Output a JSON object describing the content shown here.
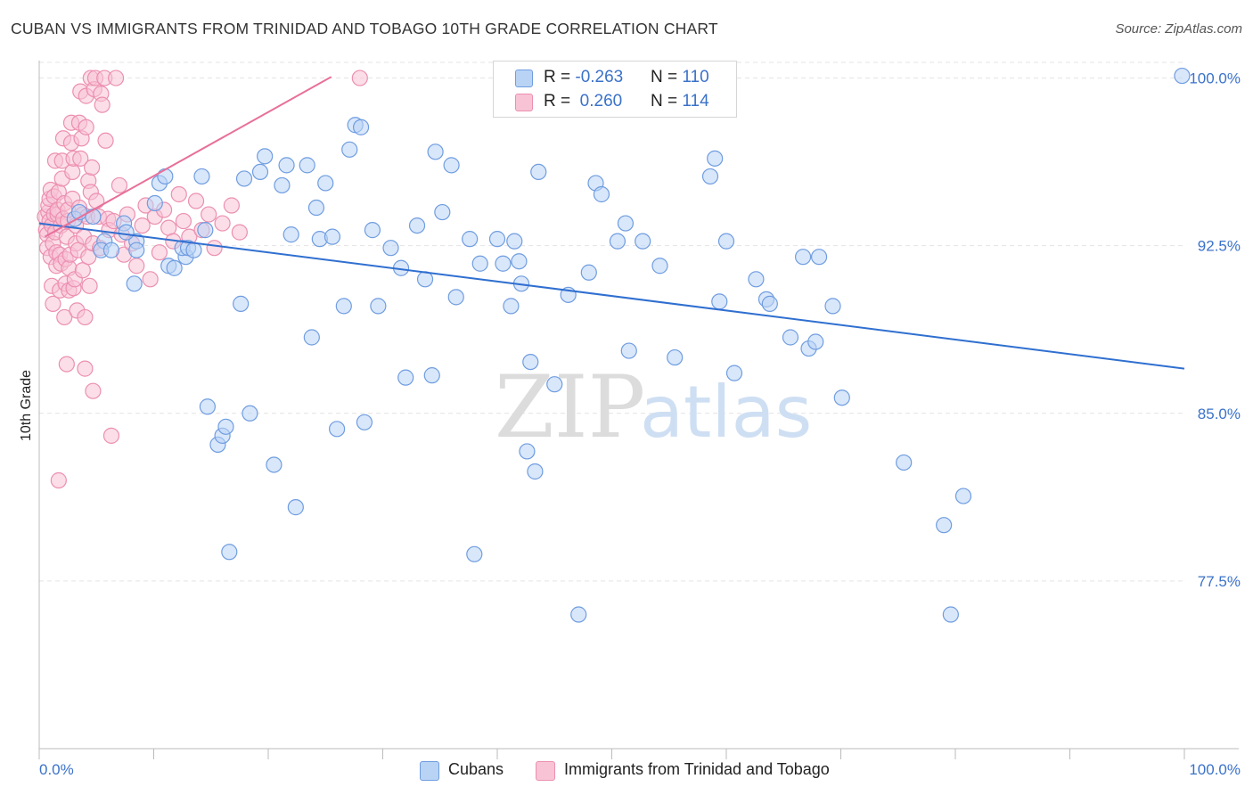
{
  "title": "CUBAN VS IMMIGRANTS FROM TRINIDAD AND TOBAGO 10TH GRADE CORRELATION CHART",
  "source": "Source: ZipAtlas.com",
  "watermark": {
    "zip": "ZIP",
    "atlas": "atlas"
  },
  "legend_top": {
    "rows": [
      {
        "r_label": "R = ",
        "r_value": "-0.263",
        "n_label": "N = ",
        "n_value": "110"
      },
      {
        "r_label": "R = ",
        "r_value": " 0.260",
        "n_label": "N = ",
        "n_value": "114"
      }
    ]
  },
  "colors": {
    "cubans_fill": "#b9d3f5",
    "cubans_stroke": "#6f9de0",
    "cubans_line": "#2f6fd0",
    "tt_fill": "#f8c3d5",
    "tt_stroke": "#ec8fb0",
    "tt_line": "#e8709a",
    "axis_text": "#3b72c9",
    "grid": "#e4e4e4"
  },
  "chart_data": {
    "type": "scatter",
    "title": "CUBAN VS IMMIGRANTS FROM TRINIDAD AND TOBAGO 10TH GRADE CORRELATION CHART",
    "xlabel": "",
    "ylabel": "10th Grade",
    "xlim": [
      0,
      100
    ],
    "ylim": [
      70.0,
      100.7
    ],
    "x_tick_labels": [
      "0.0%",
      "100.0%"
    ],
    "y_ticks": [
      77.5,
      85.0,
      92.5,
      100.0
    ],
    "y_tick_labels": [
      "77.5%",
      "85.0%",
      "92.5%",
      "100.0%"
    ],
    "grid": "horizontal dashed",
    "legend_placement": "bottom",
    "series": [
      {
        "name": "Cubans",
        "r": -0.263,
        "n": 110,
        "trend": {
          "x": [
            0,
            100
          ],
          "y": [
            93.5,
            87.0
          ]
        },
        "points": [
          [
            3.1,
            93.7
          ],
          [
            3.5,
            94.0
          ],
          [
            4.7,
            93.8
          ],
          [
            5.7,
            92.7
          ],
          [
            5.4,
            92.3
          ],
          [
            6.3,
            92.3
          ],
          [
            7.4,
            93.5
          ],
          [
            8.5,
            92.7
          ],
          [
            8.5,
            92.3
          ],
          [
            7.6,
            93.1
          ],
          [
            8.3,
            90.8
          ],
          [
            10.1,
            94.4
          ],
          [
            10.5,
            95.3
          ],
          [
            11.0,
            95.6
          ],
          [
            11.3,
            91.6
          ],
          [
            11.8,
            91.5
          ],
          [
            12.8,
            92.0
          ],
          [
            12.5,
            92.4
          ],
          [
            13.0,
            92.4
          ],
          [
            13.5,
            92.3
          ],
          [
            14.2,
            95.6
          ],
          [
            14.5,
            93.2
          ],
          [
            14.7,
            85.3
          ],
          [
            15.6,
            83.6
          ],
          [
            16.0,
            84.0
          ],
          [
            16.3,
            84.4
          ],
          [
            16.6,
            78.8
          ],
          [
            17.6,
            89.9
          ],
          [
            17.9,
            95.5
          ],
          [
            18.4,
            85.0
          ],
          [
            19.3,
            95.8
          ],
          [
            19.7,
            96.5
          ],
          [
            20.5,
            82.7
          ],
          [
            21.2,
            95.2
          ],
          [
            21.6,
            96.1
          ],
          [
            22.0,
            93.0
          ],
          [
            22.4,
            80.8
          ],
          [
            23.4,
            96.1
          ],
          [
            23.8,
            88.4
          ],
          [
            24.2,
            94.2
          ],
          [
            24.5,
            92.8
          ],
          [
            25.0,
            95.3
          ],
          [
            25.6,
            92.9
          ],
          [
            26.0,
            84.3
          ],
          [
            26.6,
            89.8
          ],
          [
            27.1,
            96.8
          ],
          [
            27.6,
            97.9
          ],
          [
            28.1,
            97.8
          ],
          [
            28.4,
            84.6
          ],
          [
            29.1,
            93.2
          ],
          [
            29.6,
            89.8
          ],
          [
            30.7,
            92.4
          ],
          [
            31.6,
            91.5
          ],
          [
            32.0,
            86.6
          ],
          [
            33.0,
            93.4
          ],
          [
            33.7,
            91.0
          ],
          [
            34.3,
            86.7
          ],
          [
            34.6,
            96.7
          ],
          [
            35.2,
            94.0
          ],
          [
            36.0,
            96.1
          ],
          [
            36.4,
            90.2
          ],
          [
            37.6,
            92.8
          ],
          [
            38.0,
            78.7
          ],
          [
            38.5,
            91.7
          ],
          [
            40.0,
            92.8
          ],
          [
            40.5,
            91.7
          ],
          [
            41.2,
            89.8
          ],
          [
            41.5,
            92.7
          ],
          [
            41.9,
            91.8
          ],
          [
            42.1,
            90.8
          ],
          [
            42.6,
            83.3
          ],
          [
            42.9,
            87.3
          ],
          [
            43.3,
            82.4
          ],
          [
            43.6,
            95.8
          ],
          [
            45.0,
            86.3
          ],
          [
            46.2,
            90.3
          ],
          [
            47.1,
            76.0
          ],
          [
            48.0,
            91.3
          ],
          [
            48.6,
            95.3
          ],
          [
            49.1,
            94.8
          ],
          [
            50.5,
            92.7
          ],
          [
            51.2,
            93.5
          ],
          [
            51.5,
            87.8
          ],
          [
            52.7,
            92.7
          ],
          [
            54.2,
            91.6
          ],
          [
            55.5,
            87.5
          ],
          [
            58.6,
            95.6
          ],
          [
            59.0,
            96.4
          ],
          [
            59.4,
            90.0
          ],
          [
            60.0,
            92.7
          ],
          [
            60.7,
            86.8
          ],
          [
            62.6,
            91.0
          ],
          [
            63.5,
            90.1
          ],
          [
            63.8,
            89.9
          ],
          [
            65.6,
            88.4
          ],
          [
            66.7,
            92.0
          ],
          [
            67.2,
            87.9
          ],
          [
            67.8,
            88.2
          ],
          [
            68.1,
            92.0
          ],
          [
            69.3,
            89.8
          ],
          [
            70.1,
            85.7
          ],
          [
            75.5,
            82.8
          ],
          [
            79.0,
            80.0
          ],
          [
            80.7,
            81.3
          ],
          [
            79.6,
            76.0
          ],
          [
            99.8,
            100.1
          ]
        ]
      },
      {
        "name": "Immigrants from Trinidad and Tobago",
        "r": 0.26,
        "n": 114,
        "trend": {
          "x": [
            0.5,
            25.5
          ],
          "y": [
            92.9,
            100.05
          ]
        },
        "points": [
          [
            0.5,
            93.8
          ],
          [
            0.6,
            93.2
          ],
          [
            0.7,
            93.0
          ],
          [
            0.7,
            92.4
          ],
          [
            0.8,
            94.0
          ],
          [
            0.8,
            94.3
          ],
          [
            0.9,
            94.6
          ],
          [
            0.9,
            93.6
          ],
          [
            1.0,
            92.0
          ],
          [
            1.0,
            95.0
          ],
          [
            1.1,
            93.4
          ],
          [
            1.1,
            90.7
          ],
          [
            1.2,
            89.9
          ],
          [
            1.2,
            92.6
          ],
          [
            1.3,
            93.9
          ],
          [
            1.3,
            94.7
          ],
          [
            1.4,
            96.3
          ],
          [
            1.4,
            93.1
          ],
          [
            1.5,
            91.6
          ],
          [
            1.5,
            92.2
          ],
          [
            1.6,
            93.9
          ],
          [
            1.6,
            94.1
          ],
          [
            1.7,
            82.0
          ],
          [
            1.7,
            94.9
          ],
          [
            1.8,
            90.5
          ],
          [
            1.8,
            92.1
          ],
          [
            1.9,
            93.4
          ],
          [
            1.9,
            91.7
          ],
          [
            2.0,
            95.5
          ],
          [
            2.0,
            96.3
          ],
          [
            2.1,
            97.3
          ],
          [
            2.1,
            93.7
          ],
          [
            2.2,
            94.4
          ],
          [
            2.2,
            89.3
          ],
          [
            2.3,
            90.8
          ],
          [
            2.3,
            91.9
          ],
          [
            2.4,
            87.2
          ],
          [
            2.4,
            92.9
          ],
          [
            2.5,
            93.6
          ],
          [
            2.5,
            94.1
          ],
          [
            2.6,
            90.5
          ],
          [
            2.6,
            91.5
          ],
          [
            2.7,
            92.1
          ],
          [
            2.8,
            97.1
          ],
          [
            2.8,
            98.0
          ],
          [
            2.9,
            94.6
          ],
          [
            2.9,
            95.8
          ],
          [
            3.0,
            96.4
          ],
          [
            3.0,
            90.6
          ],
          [
            3.1,
            91.0
          ],
          [
            3.2,
            92.6
          ],
          [
            3.2,
            93.4
          ],
          [
            3.3,
            89.6
          ],
          [
            3.4,
            92.3
          ],
          [
            3.5,
            94.2
          ],
          [
            3.5,
            98.0
          ],
          [
            3.6,
            99.4
          ],
          [
            3.6,
            96.4
          ],
          [
            3.7,
            97.3
          ],
          [
            3.8,
            93.9
          ],
          [
            3.8,
            91.4
          ],
          [
            3.9,
            92.9
          ],
          [
            4.0,
            89.3
          ],
          [
            4.0,
            87.0
          ],
          [
            4.1,
            99.2
          ],
          [
            4.1,
            97.8
          ],
          [
            4.2,
            93.8
          ],
          [
            4.3,
            95.4
          ],
          [
            4.3,
            92.0
          ],
          [
            4.4,
            90.7
          ],
          [
            4.5,
            100.0
          ],
          [
            4.5,
            94.9
          ],
          [
            4.6,
            96.0
          ],
          [
            4.7,
            86.0
          ],
          [
            4.7,
            92.6
          ],
          [
            4.8,
            99.5
          ],
          [
            4.9,
            100.0
          ],
          [
            5.0,
            94.5
          ],
          [
            5.2,
            93.8
          ],
          [
            5.3,
            92.4
          ],
          [
            5.4,
            99.3
          ],
          [
            5.5,
            98.8
          ],
          [
            5.7,
            100.0
          ],
          [
            5.8,
            97.2
          ],
          [
            6.0,
            93.7
          ],
          [
            6.1,
            93.2
          ],
          [
            6.3,
            84.0
          ],
          [
            6.5,
            93.6
          ],
          [
            6.7,
            100.0
          ],
          [
            7.0,
            95.2
          ],
          [
            7.2,
            93.0
          ],
          [
            7.4,
            92.1
          ],
          [
            7.7,
            93.9
          ],
          [
            8.1,
            92.6
          ],
          [
            8.5,
            91.6
          ],
          [
            9.0,
            93.4
          ],
          [
            9.3,
            94.3
          ],
          [
            9.7,
            91.0
          ],
          [
            10.1,
            93.8
          ],
          [
            10.5,
            92.2
          ],
          [
            10.9,
            94.1
          ],
          [
            11.3,
            93.3
          ],
          [
            11.7,
            92.7
          ],
          [
            12.2,
            94.8
          ],
          [
            12.6,
            93.6
          ],
          [
            13.1,
            92.9
          ],
          [
            13.7,
            94.5
          ],
          [
            14.2,
            93.2
          ],
          [
            14.8,
            93.9
          ],
          [
            15.3,
            92.4
          ],
          [
            16.0,
            93.5
          ],
          [
            16.8,
            94.3
          ],
          [
            17.5,
            93.1
          ],
          [
            28.0,
            100.0
          ]
        ]
      }
    ]
  },
  "legend_bottom": {
    "items": [
      {
        "label": "Cubans"
      },
      {
        "label": "Immigrants from Trinidad and Tobago"
      }
    ]
  }
}
